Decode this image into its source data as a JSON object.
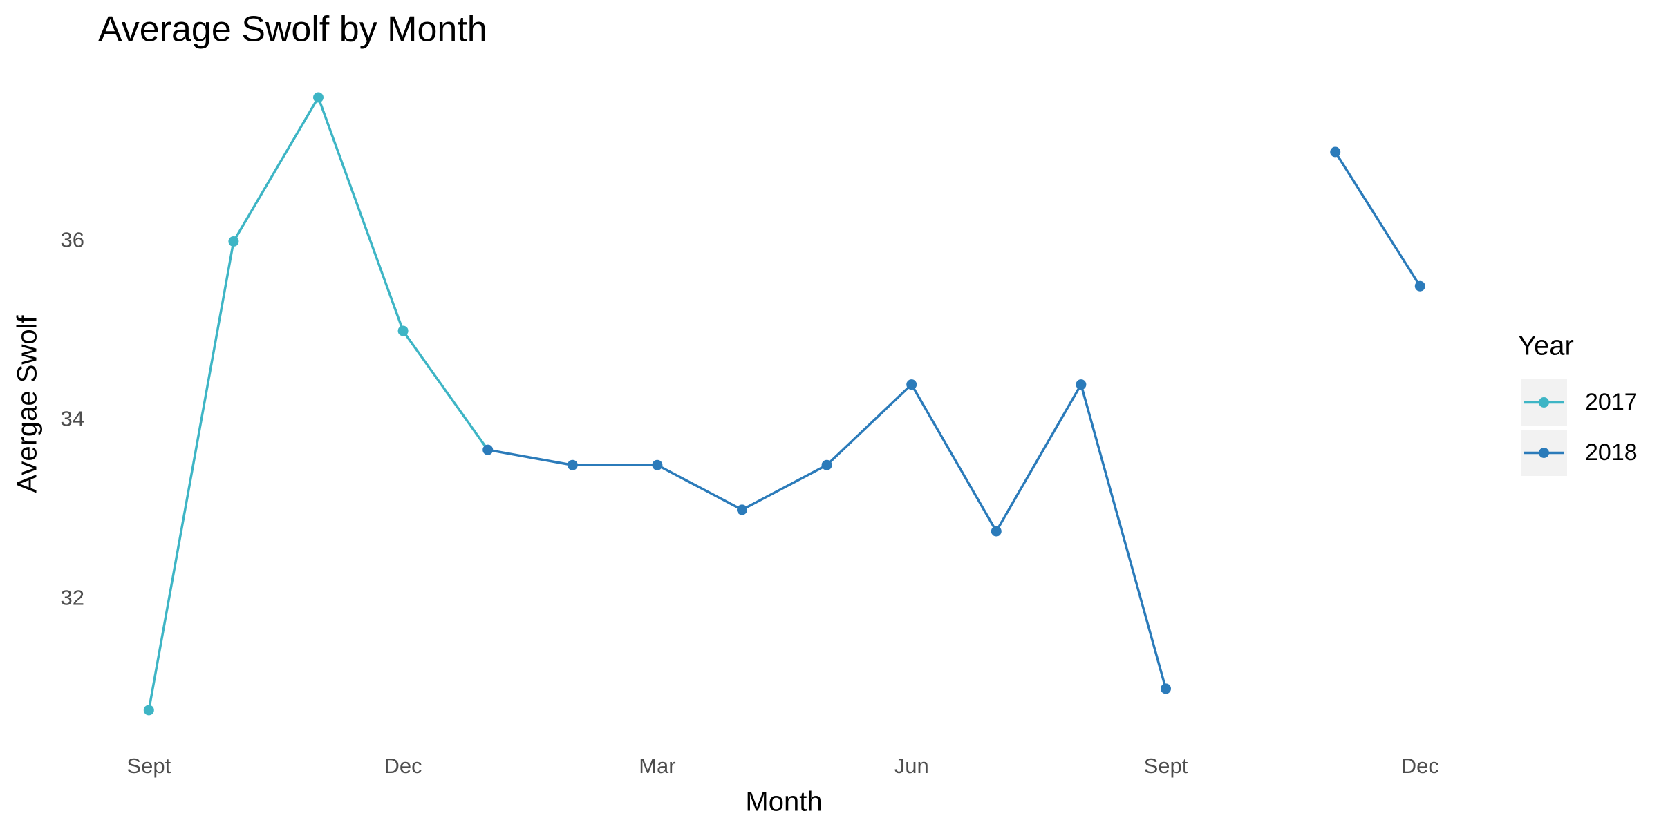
{
  "chart_data": {
    "type": "line",
    "title": "Average Swolf by Month",
    "x_label": "Month",
    "y_label": "Avergae Swolf",
    "categories": [
      "Sept",
      null,
      null,
      "Dec",
      null,
      null,
      "Mar",
      null,
      null,
      "Jun",
      null,
      null,
      "Sept",
      null,
      null,
      "Dec"
    ],
    "series": [
      {
        "name": "2017",
        "color": "#3eb5c5",
        "values": [
          30.76,
          36.0,
          37.61,
          35.0,
          null,
          null,
          null,
          null,
          null,
          null,
          null,
          null,
          null,
          null,
          null,
          null
        ]
      },
      {
        "name": "2018",
        "color": "#2b7bba",
        "values": [
          null,
          null,
          null,
          null,
          33.67,
          33.5,
          33.5,
          33.0,
          33.5,
          34.4,
          32.76,
          34.4,
          31.0,
          null,
          37.0,
          35.5
        ]
      }
    ],
    "ylim": [
      30.42,
      37.95
    ],
    "yticks": [
      32,
      34,
      36
    ],
    "grid": false,
    "legend": "right",
    "legend_title": "Year"
  }
}
